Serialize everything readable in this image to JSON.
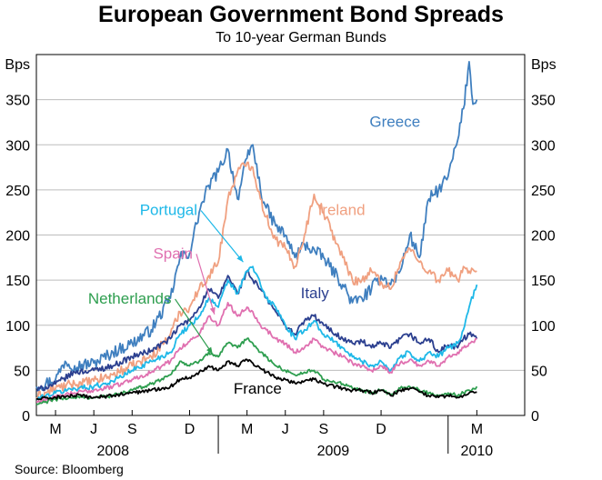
{
  "title": "European Government Bond Spreads",
  "subtitle": "To 10-year German Bunds",
  "source": "Source: Bloomberg",
  "chart_data": {
    "type": "line",
    "ylabel_left": "Bps",
    "ylabel_right": "Bps",
    "ylim": [
      0,
      400
    ],
    "yticks": [
      0,
      50,
      100,
      150,
      200,
      250,
      300,
      350
    ],
    "xlim": [
      0,
      25.5
    ],
    "x_unit": "months since 1 Apr 2008",
    "x_ticks": [
      {
        "label": "M",
        "x": 1.0
      },
      {
        "label": "J",
        "x": 3.0
      },
      {
        "label": "S",
        "x": 5.0
      },
      {
        "label": "D",
        "x": 8.0
      },
      {
        "label": "M",
        "x": 11.0
      },
      {
        "label": "J",
        "x": 13.0
      },
      {
        "label": "S",
        "x": 15.0
      },
      {
        "label": "D",
        "x": 18.0
      },
      {
        "label": "M",
        "x": 23.0
      }
    ],
    "year_labels": [
      {
        "label": "2008",
        "x": 4.0
      },
      {
        "label": "2009",
        "x": 15.5
      },
      {
        "label": "2010",
        "x": 23.0
      }
    ],
    "grid": true,
    "series": [
      {
        "name": "Greece",
        "color": "#3f7fbf",
        "x": [
          0,
          1,
          1.5,
          2,
          3,
          4,
          5,
          6,
          7,
          7.5,
          8,
          8.5,
          9,
          9.5,
          10,
          10.5,
          11,
          11.3,
          11.7,
          12,
          12.5,
          13,
          13.5,
          14,
          15,
          16,
          16.5,
          17,
          17.5,
          18,
          18.5,
          19,
          19.5,
          20,
          20.5,
          21,
          21.5,
          22,
          22.3,
          22.6,
          22.8,
          23
        ],
        "values": [
          32,
          40,
          60,
          55,
          58,
          70,
          80,
          95,
          130,
          175,
          180,
          225,
          255,
          270,
          295,
          240,
          285,
          300,
          250,
          230,
          210,
          200,
          175,
          190,
          175,
          145,
          125,
          130,
          140,
          155,
          145,
          160,
          200,
          175,
          240,
          250,
          265,
          305,
          340,
          392,
          345,
          350
        ]
      },
      {
        "name": "Ireland",
        "color": "#f0a080",
        "x": [
          0,
          1,
          2,
          3,
          4,
          5,
          6,
          7,
          7.5,
          8,
          8.5,
          9,
          9.5,
          10,
          10.5,
          11,
          11.3,
          11.7,
          12,
          12.5,
          13,
          13.5,
          14,
          14.5,
          15,
          16,
          16.5,
          17,
          17.5,
          18,
          18.5,
          19,
          19.5,
          20,
          20.5,
          21,
          21.5,
          22,
          22.3,
          22.6,
          23
        ],
        "values": [
          20,
          30,
          35,
          38,
          45,
          55,
          65,
          90,
          115,
          120,
          140,
          155,
          170,
          240,
          270,
          280,
          275,
          240,
          220,
          195,
          185,
          165,
          200,
          245,
          225,
          175,
          150,
          150,
          160,
          148,
          140,
          170,
          185,
          170,
          160,
          150,
          160,
          150,
          165,
          160,
          160
        ]
      },
      {
        "name": "Italy",
        "color": "#2b3f8f",
        "x": [
          0,
          1,
          2,
          3,
          4,
          5,
          6,
          7,
          7.5,
          8,
          8.5,
          9,
          9.5,
          10,
          10.5,
          11,
          11.3,
          11.7,
          12,
          12.5,
          13,
          13.5,
          14,
          14.5,
          15,
          16,
          16.5,
          17,
          17.5,
          18,
          18.5,
          19,
          19.5,
          20,
          20.5,
          21,
          21.5,
          22,
          22.3,
          22.6,
          23
        ],
        "values": [
          28,
          35,
          48,
          50,
          55,
          65,
          72,
          85,
          100,
          105,
          120,
          140,
          130,
          155,
          135,
          160,
          150,
          140,
          130,
          115,
          100,
          90,
          105,
          110,
          100,
          85,
          80,
          82,
          75,
          80,
          75,
          85,
          90,
          80,
          85,
          70,
          78,
          75,
          85,
          90,
          85
        ]
      },
      {
        "name": "Portugal",
        "color": "#1eb8e8",
        "x": [
          0,
          1,
          2,
          3,
          4,
          5,
          6,
          7,
          7.5,
          8,
          8.5,
          9,
          9.5,
          10,
          10.5,
          11,
          11.3,
          11.7,
          12,
          12.5,
          13,
          13.5,
          14,
          14.5,
          15,
          16,
          16.5,
          17,
          17.5,
          18,
          18.5,
          19,
          19.5,
          20,
          20.5,
          21,
          21.5,
          22,
          22.3,
          22.6,
          23
        ],
        "values": [
          18,
          25,
          30,
          32,
          38,
          50,
          60,
          70,
          90,
          100,
          110,
          130,
          120,
          150,
          135,
          160,
          165,
          145,
          130,
          120,
          100,
          85,
          95,
          105,
          90,
          75,
          65,
          60,
          55,
          60,
          50,
          65,
          70,
          60,
          70,
          65,
          75,
          80,
          95,
          120,
          145
        ]
      },
      {
        "name": "Spain",
        "color": "#e070b0",
        "x": [
          0,
          1,
          2,
          3,
          4,
          5,
          6,
          7,
          7.5,
          8,
          8.5,
          9,
          9.5,
          10,
          10.5,
          11,
          11.3,
          11.7,
          12,
          12.5,
          13,
          13.5,
          14,
          14.5,
          15,
          16,
          16.5,
          17,
          17.5,
          18,
          18.5,
          19,
          19.5,
          20,
          20.5,
          21,
          21.5,
          22,
          22.3,
          22.6,
          23
        ],
        "values": [
          15,
          20,
          25,
          28,
          32,
          40,
          48,
          60,
          75,
          82,
          90,
          110,
          100,
          125,
          110,
          120,
          115,
          100,
          95,
          85,
          80,
          70,
          75,
          85,
          75,
          65,
          58,
          55,
          50,
          55,
          48,
          58,
          62,
          55,
          60,
          55,
          65,
          70,
          75,
          80,
          85
        ]
      },
      {
        "name": "Netherlands",
        "color": "#2e9e4f",
        "x": [
          0,
          1,
          2,
          3,
          4,
          5,
          6,
          7,
          7.5,
          8,
          8.5,
          9,
          9.5,
          10,
          10.5,
          11,
          11.3,
          11.7,
          12,
          12.5,
          13,
          13.5,
          14,
          14.5,
          15,
          16,
          16.5,
          17,
          17.5,
          18,
          18.5,
          19,
          19.5,
          20,
          20.5,
          21,
          21.5,
          22,
          22.3,
          22.6,
          23
        ],
        "values": [
          12,
          18,
          20,
          20,
          22,
          28,
          35,
          45,
          60,
          55,
          60,
          70,
          65,
          80,
          75,
          85,
          80,
          70,
          65,
          55,
          50,
          45,
          48,
          50,
          40,
          35,
          30,
          28,
          25,
          28,
          22,
          30,
          32,
          28,
          25,
          22,
          25,
          22,
          25,
          28,
          32
        ]
      },
      {
        "name": "France",
        "color": "#000000",
        "x": [
          0,
          1,
          2,
          3,
          4,
          5,
          6,
          7,
          7.5,
          8,
          8.5,
          9,
          9.5,
          10,
          10.5,
          11,
          11.3,
          11.7,
          12,
          12.5,
          13,
          13.5,
          14,
          14.5,
          15,
          16,
          16.5,
          17,
          17.5,
          18,
          18.5,
          19,
          19.5,
          20,
          20.5,
          21,
          21.5,
          22,
          22.3,
          22.6,
          23
        ],
        "values": [
          18,
          20,
          22,
          20,
          22,
          25,
          28,
          32,
          40,
          42,
          48,
          55,
          50,
          60,
          55,
          62,
          58,
          52,
          48,
          42,
          40,
          36,
          38,
          40,
          35,
          30,
          28,
          28,
          25,
          28,
          22,
          28,
          30,
          26,
          22,
          20,
          22,
          20,
          22,
          25,
          26
        ]
      }
    ]
  },
  "annotations": [
    {
      "text": "Greece",
      "color": "#3f7fbf",
      "x": 17.4,
      "y": 320
    },
    {
      "text": "Ireland",
      "color": "#f0a080",
      "x": 14.7,
      "y": 222
    },
    {
      "text": "Portugal",
      "color": "#1eb8e8",
      "x": 5.4,
      "y": 222,
      "arrow_to": [
        10.8,
        170
      ]
    },
    {
      "text": "Spain",
      "color": "#e070b0",
      "x": 6.1,
      "y": 174,
      "arrow_to": [
        9.3,
        112
      ]
    },
    {
      "text": "Netherlands",
      "color": "#2e9e4f",
      "x": 2.7,
      "y": 124,
      "arrow_to": [
        9.2,
        68
      ]
    },
    {
      "text": "Italy",
      "color": "#2b3f8f",
      "x": 13.8,
      "y": 130
    },
    {
      "text": "France",
      "color": "#000000",
      "x": 10.3,
      "y": 24
    }
  ]
}
